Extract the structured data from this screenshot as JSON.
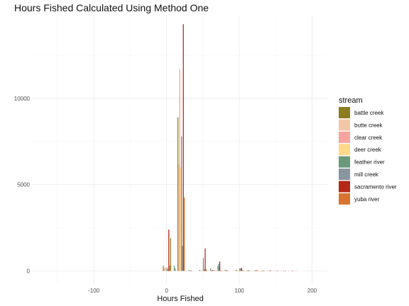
{
  "chart_data": {
    "type": "bar",
    "title": "Hours Fished Calculated Using Method One",
    "xlabel": "Hours Fished",
    "ylabel": "",
    "xlim": [
      -185,
      222
    ],
    "ylim": [
      -800,
      14800
    ],
    "x_ticks": [
      -100,
      0,
      100,
      200
    ],
    "x_tick_labels": [
      "-100",
      "0",
      "100",
      "200"
    ],
    "y_ticks": [
      0,
      5000,
      10000
    ],
    "y_tick_labels": [
      "0",
      "5000",
      "10000"
    ],
    "grid": true,
    "bin_width": 10,
    "legend_title": "stream",
    "legend_position": "right",
    "bins": [
      0,
      10,
      20,
      30,
      50,
      60,
      70,
      80,
      100,
      110,
      120,
      130,
      140,
      150,
      160,
      170,
      180
    ],
    "series": [
      {
        "name": "battle creek",
        "color": "#8B7D1E",
        "values": [
          300,
          1900,
          8900,
          0,
          60,
          20,
          40,
          10,
          60,
          10,
          0,
          10,
          0,
          0,
          0,
          0,
          0
        ]
      },
      {
        "name": "butte creek",
        "color": "#F2C6A6",
        "values": [
          150,
          0,
          6200,
          0,
          0,
          0,
          0,
          0,
          20,
          0,
          0,
          0,
          0,
          0,
          0,
          0,
          0
        ]
      },
      {
        "name": "clear creek",
        "color": "#F4A39E",
        "values": [
          200,
          20,
          11700,
          10,
          40,
          10,
          30,
          10,
          40,
          20,
          10,
          20,
          10,
          10,
          20,
          10,
          10
        ]
      },
      {
        "name": "deer creek",
        "color": "#FFD88A",
        "values": [
          100,
          0,
          6000,
          0,
          0,
          0,
          0,
          0,
          10,
          0,
          0,
          0,
          0,
          0,
          0,
          0,
          0
        ]
      },
      {
        "name": "feather river",
        "color": "#6A9A7A",
        "values": [
          200,
          300,
          7800,
          50,
          750,
          150,
          300,
          80,
          150,
          30,
          20,
          10,
          10,
          10,
          10,
          0,
          0
        ]
      },
      {
        "name": "mill creek",
        "color": "#87959E",
        "values": [
          100,
          150,
          1450,
          30,
          100,
          30,
          420,
          30,
          150,
          20,
          10,
          10,
          10,
          0,
          0,
          0,
          0
        ]
      },
      {
        "name": "sacramento river",
        "color": "#B52818",
        "values": [
          2400,
          0,
          14300,
          20,
          1300,
          60,
          550,
          40,
          180,
          40,
          50,
          20,
          30,
          20,
          10,
          10,
          0
        ]
      },
      {
        "name": "yuba river",
        "color": "#D8742E",
        "values": [
          300,
          0,
          4250,
          10,
          100,
          20,
          40,
          10,
          60,
          10,
          10,
          10,
          0,
          0,
          0,
          0,
          0
        ]
      }
    ]
  }
}
